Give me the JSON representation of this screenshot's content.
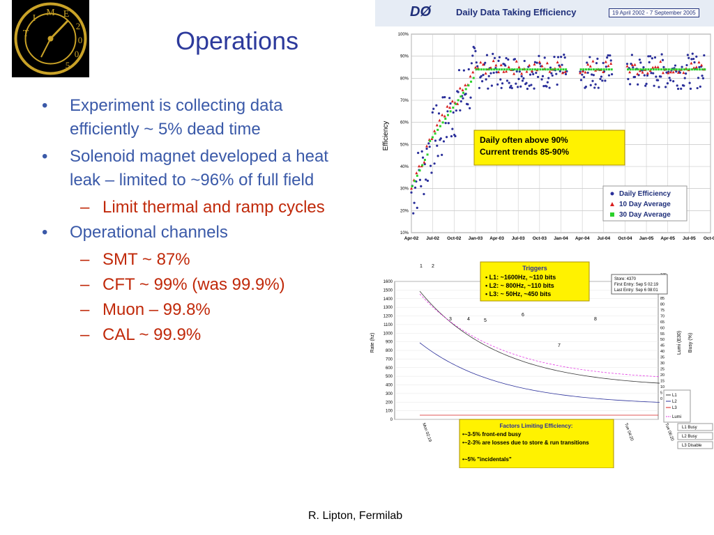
{
  "slide": {
    "title": "Operations",
    "footer": "R. Lipton, Fermilab",
    "bullets": [
      {
        "text": "Experiment is collecting data efficiently ~ 5% dead time",
        "subs": []
      },
      {
        "text": "Solenoid magnet developed a heat leak – limited to ~96% of full field",
        "subs": [
          "Limit thermal and ramp cycles"
        ]
      },
      {
        "text": "Operational channels",
        "subs": [
          "SMT ~ 87%",
          "CFT ~ 99% (was 99.9%)",
          "Muon – 99.8%",
          "CAL ~ 99.9%"
        ]
      }
    ],
    "logo": {
      "letters": [
        "T",
        "I",
        "M",
        "E",
        "2",
        "0",
        "0",
        "5"
      ]
    }
  },
  "efficiency_chart": {
    "brand": "DØ",
    "title": "Daily Data Taking Efficiency",
    "date_range": "19 April 2002 - 7 September 2005",
    "ylabel": "Efficiency",
    "yticks": [
      "100%",
      "90%",
      "80%",
      "70%",
      "60%",
      "50%",
      "40%",
      "30%",
      "20%",
      "10%"
    ],
    "xticks": [
      "Apr-02",
      "Jul-02",
      "Oct-02",
      "Jan-03",
      "Apr-03",
      "Jul-03",
      "Oct-03",
      "Jan-04",
      "Apr-04",
      "Jul-04",
      "Oct-04",
      "Jan-05",
      "Apr-05",
      "Jul-05",
      "Oct-05"
    ],
    "callout": [
      "Daily often above 90%",
      "Current trends 85-90%"
    ],
    "legend": [
      "Daily Efficiency",
      "10 Day Average",
      "30 Day Average"
    ],
    "colors": {
      "daily": "#2a2f9a",
      "ten_day": "#d81e1e",
      "thirty_day": "#2bd12b",
      "callout_bg": "#fff200"
    }
  },
  "trigger_chart": {
    "triggers_box": {
      "title": "Triggers",
      "lines": [
        "L1: ~1600Hz, ~110 bits",
        "L2: ~ 800Hz, ~110 bits",
        "L3: ~ 50Hz, ~450 bits"
      ]
    },
    "store_box": [
      "Store: 4370",
      "First Entry: Sep 5 02:19",
      "Last Entry: Sep 6 08:01"
    ],
    "ylabel_left": "Rate (hz)",
    "ylabel_mid": "Lumi (E30)",
    "ylabel_right": "Busy (%)",
    "yticks_left": [
      "1600",
      "1500",
      "1400",
      "1300",
      "1200",
      "1100",
      "1000",
      "900",
      "800",
      "700",
      "600",
      "500",
      "400",
      "300",
      "200",
      "100",
      "0"
    ],
    "yticks_right": [
      "105",
      "100",
      "95",
      "90",
      "85",
      "80",
      "75",
      "70",
      "65",
      "60",
      "55",
      "50",
      "45",
      "40",
      "35",
      "30",
      "25",
      "20",
      "15",
      "10",
      "5",
      "0"
    ],
    "store_markers": [
      "1",
      "2",
      "3",
      "4",
      "5",
      "6",
      "7",
      "8"
    ],
    "xticks": [
      "Mon 02:19",
      "Mon 04:19",
      "Mon 06:19",
      "Mon 08:19",
      "Tue 02:20",
      "Tue 04:20",
      "Tue 06:20"
    ],
    "legend_top": [
      "L1",
      "L2",
      "L3",
      "Lumi"
    ],
    "legend_bottom": [
      "L1 Busy",
      "L2 Busy",
      "L3 Disable"
    ],
    "factors_box": {
      "title": "Factors Limiting Efficiency:",
      "lines": [
        "•~3-5% front-end busy",
        "•~2-3% are losses due to store & run transitions",
        "•~5% \"incidentals\""
      ]
    }
  }
}
